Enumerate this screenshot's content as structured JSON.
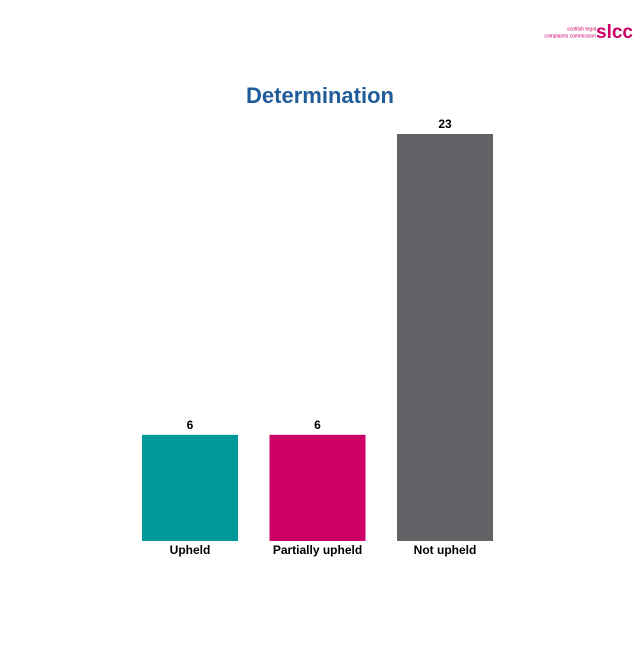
{
  "logo": {
    "mark": "slcc",
    "line1": "scottish legal",
    "line2": "complaints commission"
  },
  "chart_data": {
    "type": "bar",
    "title": "Determination",
    "categories": [
      "Upheld",
      "Partially upheld",
      "Not upheld"
    ],
    "values": [
      6,
      6,
      23
    ],
    "colors": [
      "#009999",
      "#cc0066",
      "#626366"
    ]
  }
}
